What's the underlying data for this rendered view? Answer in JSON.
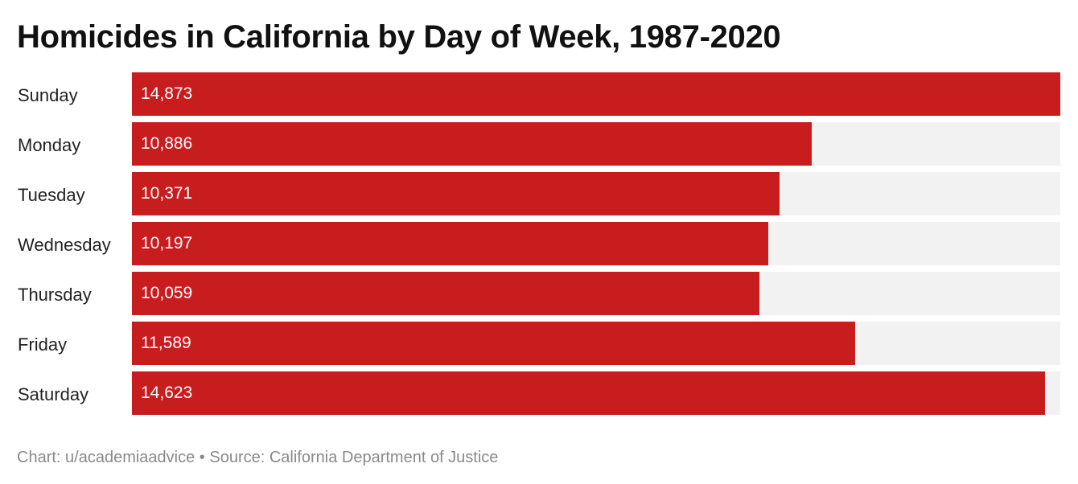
{
  "chart_data": {
    "type": "bar",
    "orientation": "horizontal",
    "title": "Homicides in California by Day of Week, 1987-2020",
    "categories": [
      "Sunday",
      "Monday",
      "Tuesday",
      "Wednesday",
      "Thursday",
      "Friday",
      "Saturday"
    ],
    "values": [
      14873,
      10886,
      10371,
      10197,
      10059,
      11589,
      14623
    ],
    "value_labels": [
      "14,873",
      "10,886",
      "10,371",
      "10,197",
      "10,059",
      "11,589",
      "14,623"
    ],
    "xlim": [
      0,
      14873
    ],
    "xlabel": "",
    "ylabel": "",
    "grid": false,
    "legend": "none",
    "bar_color": "#c81d1f",
    "track_color": "#f2f2f2"
  },
  "footer": {
    "credit": "Chart: u/academiaadvice",
    "separator": "•",
    "source": "Source: California Department of Justice"
  }
}
